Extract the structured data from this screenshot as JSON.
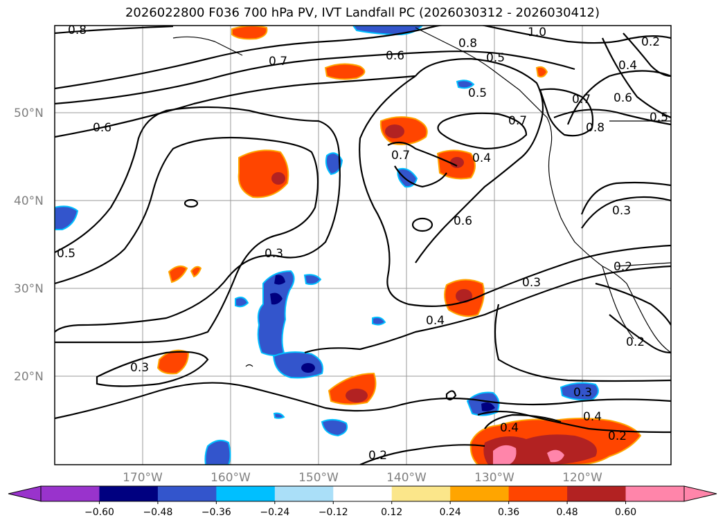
{
  "title": "2026022800 F036 700 hPa PV, IVT Landfall PC (2026030312 - 2026030412)",
  "map": {
    "projection": "lat-lon",
    "lon_range": [
      -180,
      -110
    ],
    "lat_range": [
      10,
      60
    ],
    "lat_labels": [
      "50°N",
      "40°N",
      "30°N",
      "20°N"
    ],
    "lon_labels": [
      "170°W",
      "160°W",
      "150°W",
      "140°W",
      "130°W",
      "120°W"
    ],
    "grid": true,
    "contour_labels": [
      "0.8",
      "1.0",
      "0.7",
      "0.6",
      "0.8",
      "0.5",
      "0.5",
      "0.4",
      "0.7",
      "0.6",
      "0.8",
      "0.5",
      "0.6",
      "0.7",
      "0.4",
      "0.6",
      "0.3",
      "0.3",
      "0.5",
      "0.2",
      "0.3",
      "0.4",
      "0.2",
      "0.3",
      "0.3",
      "0.4",
      "0.4",
      "0.2",
      "0.2",
      "0.7",
      "0.2"
    ],
    "colors": {
      "purple": "#9933cc",
      "navy": "#000080",
      "royal_blue": "#3355cc",
      "deep_sky_blue": "#00bfff",
      "light_blue": "#aadff8",
      "white": "#ffffff",
      "khaki": "#fbe68a",
      "orange": "#ffa500",
      "orange_red": "#ff4500",
      "firebrick": "#b22222",
      "pink": "#ff85aa"
    }
  },
  "colorbar": {
    "tick_labels": [
      "−0.60",
      "−0.48",
      "−0.36",
      "−0.24",
      "−0.12",
      "0.12",
      "0.24",
      "0.36",
      "0.48",
      "0.60"
    ],
    "bins": [
      "#9933cc",
      "#000080",
      "#3355cc",
      "#00bfff",
      "#aadff8",
      "#ffffff",
      "#fbe68a",
      "#ffa500",
      "#ff4500",
      "#b22222",
      "#ff85aa"
    ]
  }
}
